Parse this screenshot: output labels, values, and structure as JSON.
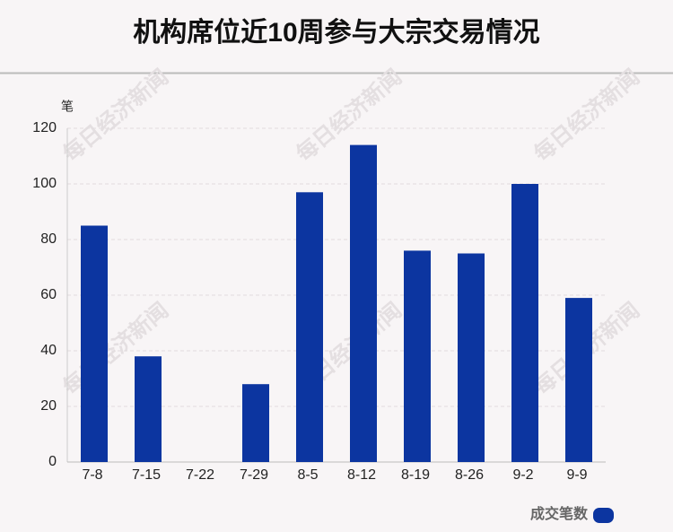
{
  "chart_data": {
    "type": "bar",
    "title": "机构席位近10周参与大宗交易情况",
    "y_axis_label": "笔",
    "categories": [
      "7-8",
      "7-15",
      "7-22",
      "7-29",
      "8-5",
      "8-12",
      "8-19",
      "8-26",
      "9-2",
      "9-9"
    ],
    "series": [
      {
        "name": "成交笔数",
        "color": "#0c35a0",
        "values": [
          85,
          38,
          0,
          28,
          97,
          114,
          76,
          75,
          100,
          59
        ]
      }
    ],
    "ylim": [
      0,
      120
    ],
    "yticks": [
      0,
      20,
      40,
      60,
      80,
      100,
      120
    ],
    "grid": true,
    "legend": "bottom-right",
    "watermark": "每日经济新闻"
  }
}
